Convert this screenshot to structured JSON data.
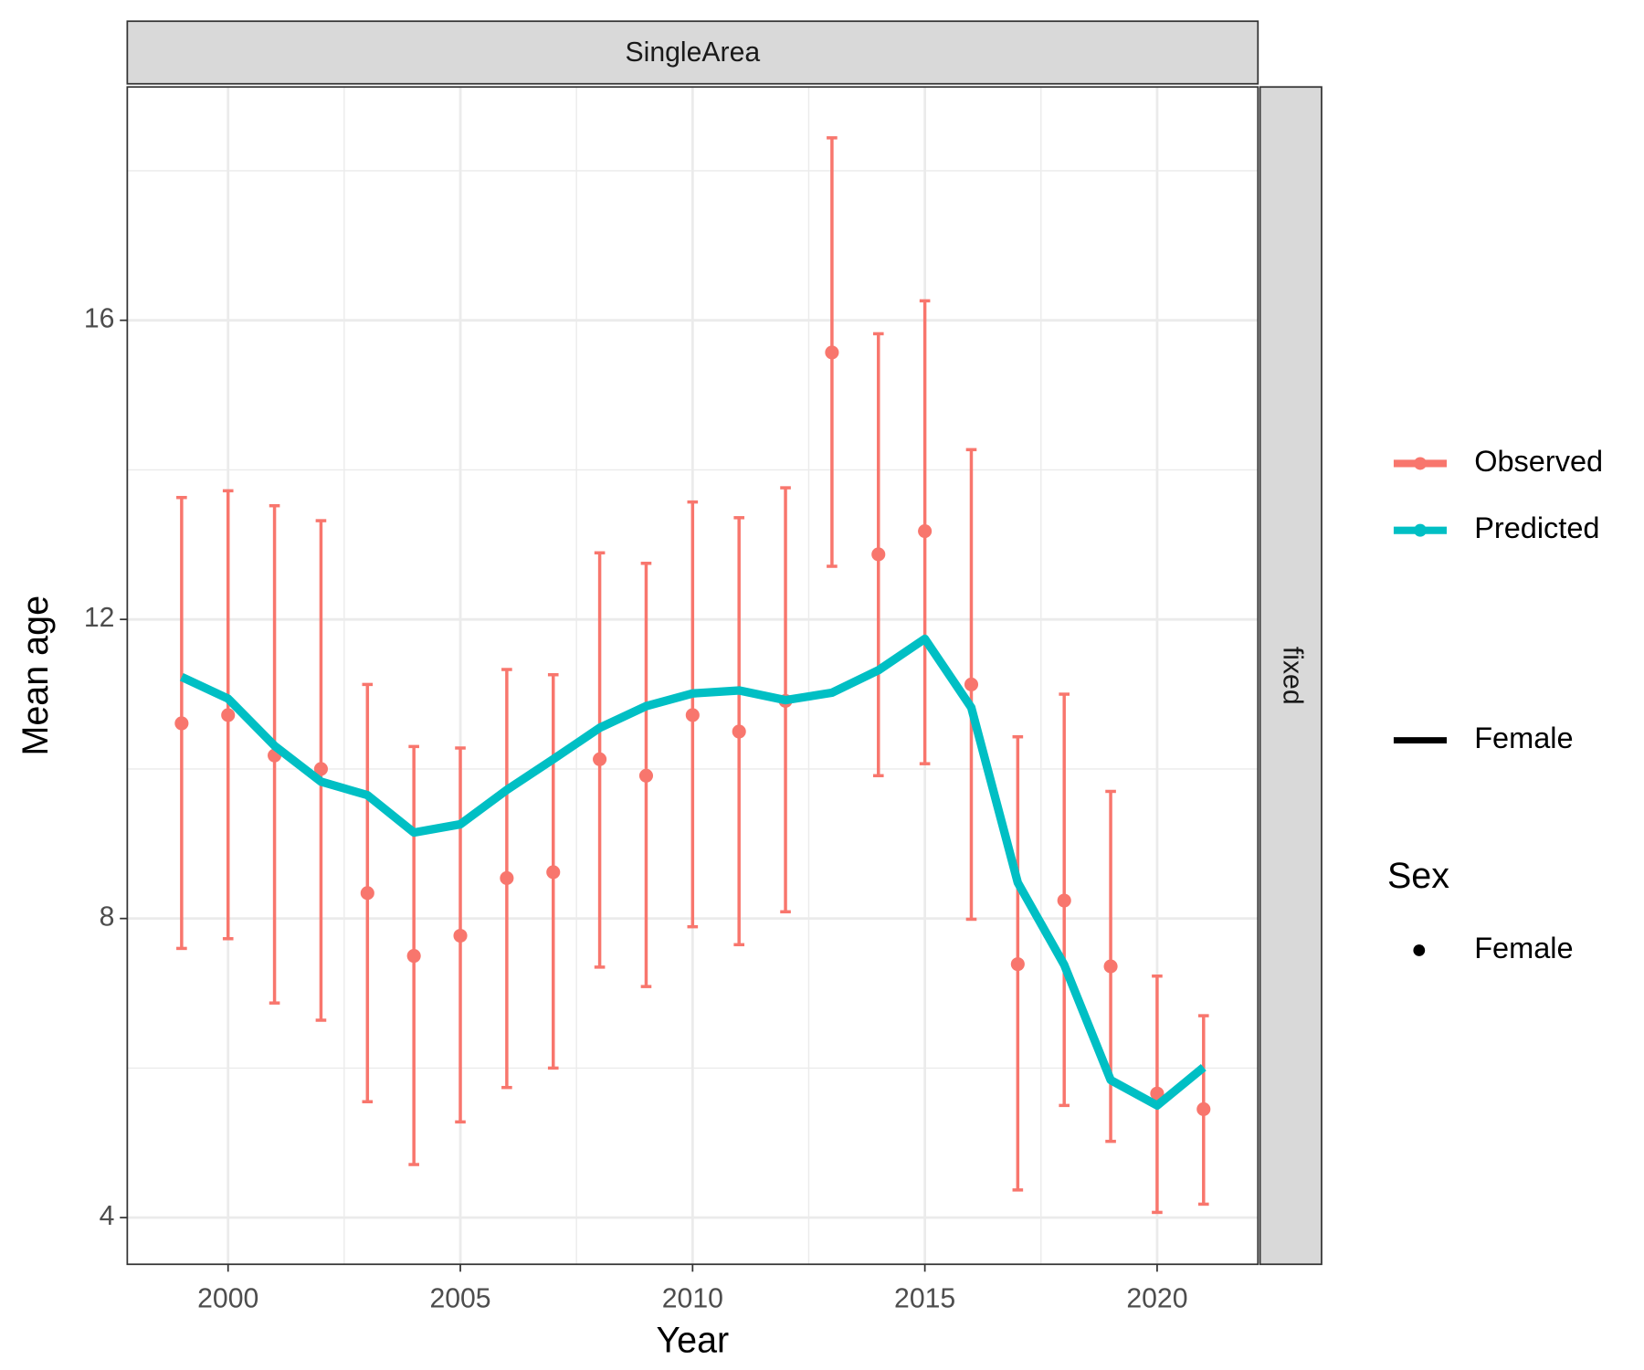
{
  "chart_data": {
    "type": "line",
    "facet_col": "SingleArea",
    "facet_row": "fixed",
    "x_label": "Year",
    "y_label": "Mean age",
    "x": [
      1999,
      2000,
      2001,
      2002,
      2003,
      2004,
      2005,
      2006,
      2007,
      2008,
      2009,
      2010,
      2011,
      2012,
      2013,
      2014,
      2015,
      2016,
      2017,
      2018,
      2019,
      2020,
      2021
    ],
    "series": [
      {
        "name": "Observed",
        "color": "#f8766d",
        "values": [
          10.61,
          10.72,
          10.18,
          10.0,
          8.34,
          7.5,
          7.77,
          8.54,
          8.62,
          10.13,
          9.91,
          10.72,
          10.5,
          10.91,
          15.57,
          12.87,
          13.18,
          11.13,
          7.39,
          8.24,
          7.36,
          5.66,
          5.45
        ],
        "lower": [
          7.6,
          7.73,
          6.87,
          6.64,
          5.55,
          4.71,
          5.28,
          5.74,
          6.0,
          7.35,
          7.09,
          7.89,
          7.65,
          8.09,
          12.71,
          9.91,
          10.07,
          7.99,
          4.37,
          5.5,
          5.02,
          4.07,
          4.18
        ],
        "upper": [
          13.63,
          13.72,
          13.52,
          13.32,
          11.13,
          10.3,
          10.28,
          11.33,
          11.26,
          12.89,
          12.75,
          13.57,
          13.36,
          13.76,
          18.44,
          15.82,
          16.26,
          14.27,
          10.43,
          11.0,
          9.7,
          7.23,
          6.7
        ]
      },
      {
        "name": "Predicted",
        "color": "#00bfc4",
        "values": [
          11.23,
          10.94,
          10.31,
          9.83,
          9.65,
          9.15,
          9.26,
          9.72,
          10.13,
          10.55,
          10.84,
          11.01,
          11.05,
          10.92,
          11.02,
          11.32,
          11.74,
          10.82,
          8.48,
          7.38,
          5.84,
          5.5,
          6.01
        ]
      }
    ],
    "linetype_legend": [
      "Female"
    ],
    "shape_legend": {
      "title": "Sex",
      "labels": [
        "Female"
      ]
    },
    "xlim": [
      1997.83,
      2022.17
    ],
    "ylim": [
      3.376,
      19.12
    ],
    "xticks": [
      2000,
      2005,
      2010,
      2015,
      2020
    ],
    "yticks": [
      4,
      8,
      12,
      16
    ],
    "grid": true
  }
}
